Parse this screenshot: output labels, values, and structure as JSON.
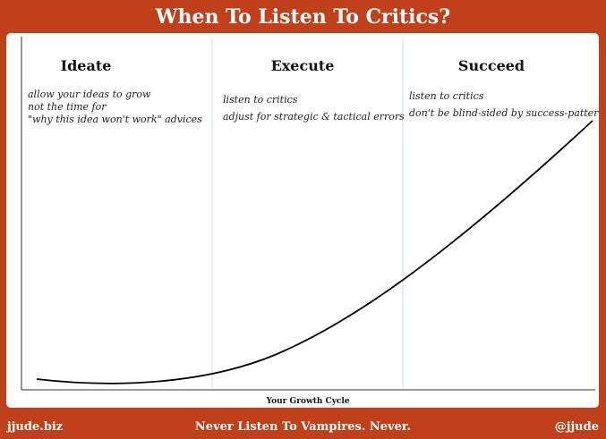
{
  "header": {
    "title": "When To Listen To Critics?"
  },
  "diagram": {
    "phases": [
      {
        "name": "Ideate",
        "notes": [
          "allow your ideas to grow",
          "not the time for",
          "\"why this idea won't work\" advices"
        ]
      },
      {
        "name": "Execute",
        "notes": [
          "listen to critics",
          "adjust for strategic & tactical errors"
        ]
      },
      {
        "name": "Succeed",
        "notes": [
          "listen to critics",
          "don't be blind-sided by success-patterns"
        ]
      }
    ],
    "x_axis_label": "Your Growth Cycle"
  },
  "footer": {
    "left": "jjude.biz",
    "center": "Never Listen To Vampires. Never.",
    "right": "@jjude"
  },
  "colors": {
    "background": "#c0401c",
    "panel": "#ffffff",
    "divider": "#cfe3ea",
    "curve": "#000000"
  }
}
